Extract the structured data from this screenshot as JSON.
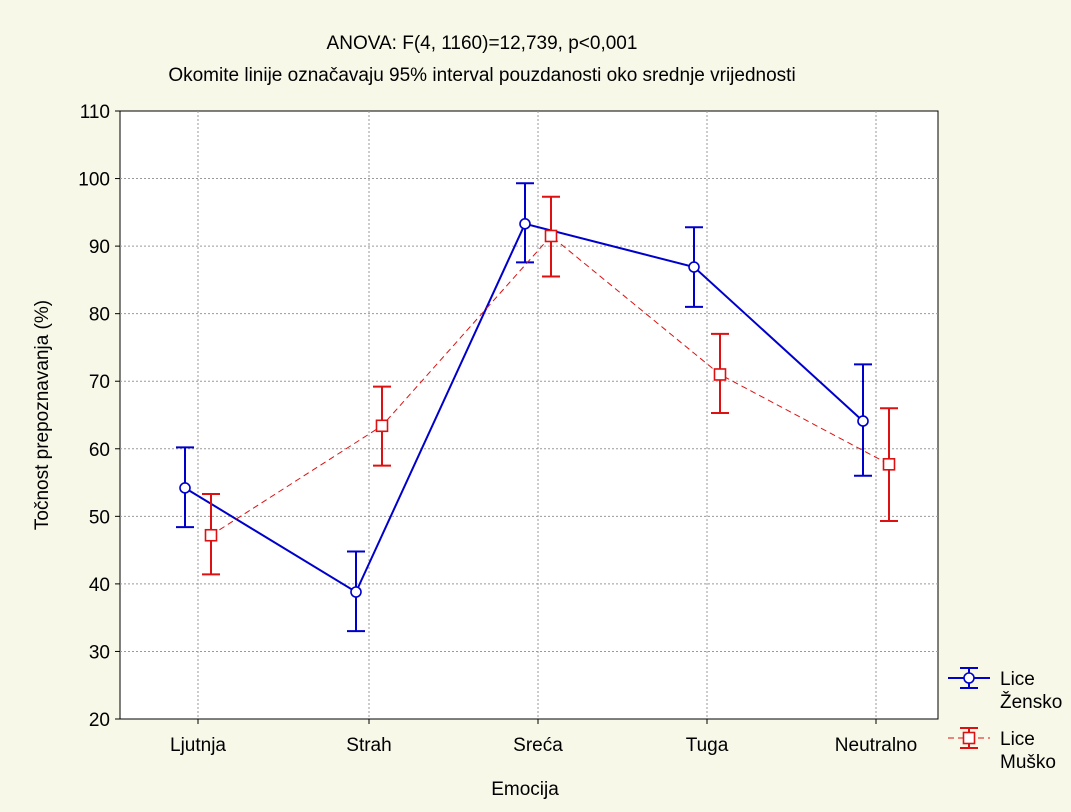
{
  "chart_data": {
    "type": "line",
    "title": "ANOVA: F(4, 1160)=12,739, p<0,001",
    "subtitle": "Okomite linije označavaju 95% interval pouzdanosti oko srednje vrijednosti",
    "xlabel": "Emocija",
    "ylabel": "Točnost prepoznavanja (%)",
    "categories": [
      "Ljutnja",
      "Strah",
      "Sreća",
      "Tuga",
      "Neutralno"
    ],
    "ylim": [
      20,
      110
    ],
    "yticks": [
      "20",
      "30",
      "40",
      "50",
      "60",
      "70",
      "80",
      "90",
      "100",
      "110"
    ],
    "grid": true,
    "legend_placement": "bottom-right",
    "series": [
      {
        "name_line1": "Lice",
        "name_line2": "Žensko",
        "color": "#0000cc",
        "line_style": "solid",
        "marker": "diamond-circle",
        "values": [
          54.2,
          38.8,
          93.3,
          86.9,
          64.1
        ],
        "ci_low": [
          48.4,
          33.0,
          87.6,
          81.0,
          56.0
        ],
        "ci_high": [
          60.2,
          44.8,
          99.3,
          92.8,
          72.5
        ]
      },
      {
        "name_line1": "Lice",
        "name_line2": "Muško",
        "color": "#dd1111",
        "line_style": "dashed",
        "marker": "square",
        "values": [
          47.2,
          63.4,
          91.5,
          71.0,
          57.7
        ],
        "ci_low": [
          41.4,
          57.5,
          85.5,
          65.3,
          49.3
        ],
        "ci_high": [
          53.3,
          69.2,
          97.3,
          77.0,
          66.0
        ]
      }
    ]
  }
}
